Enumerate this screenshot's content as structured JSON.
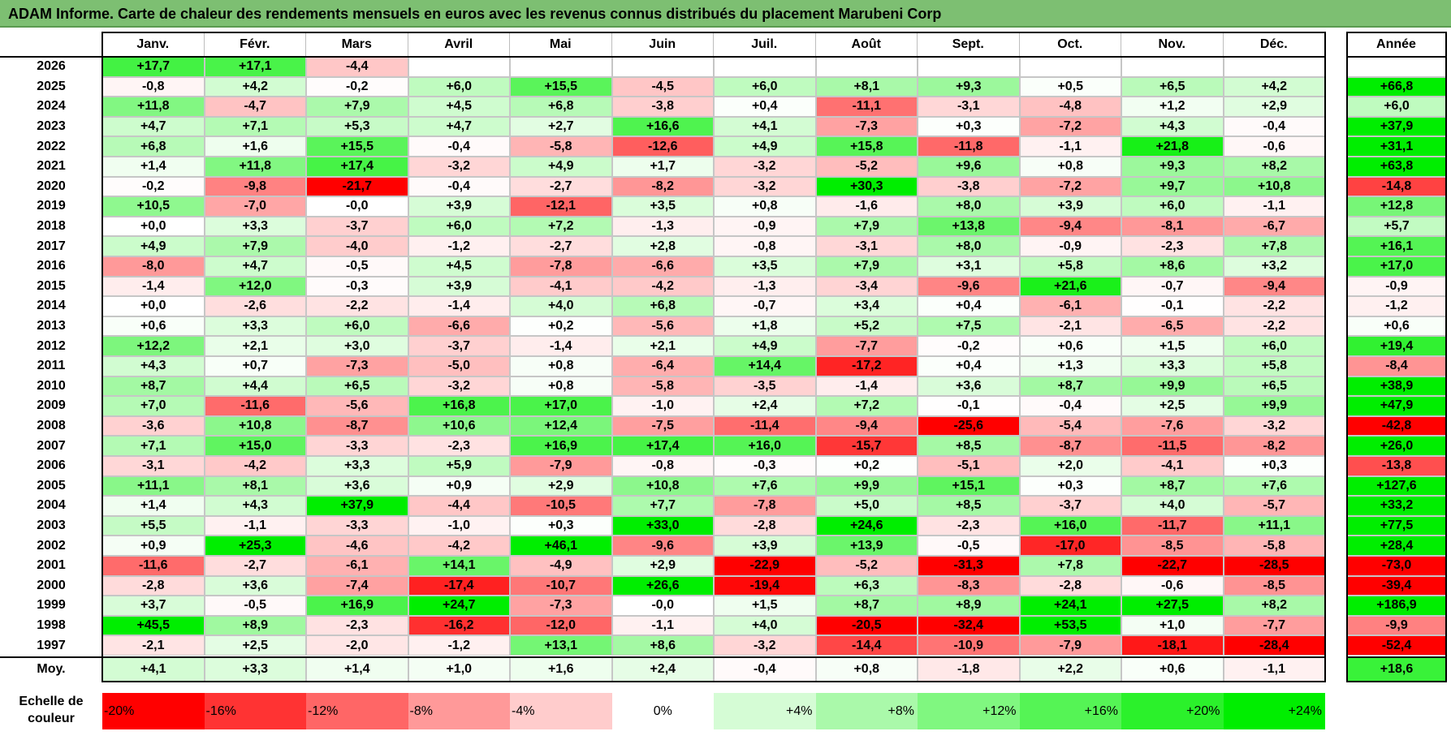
{
  "title": "ADAM Informe. Carte de chaleur des rendements mensuels en euros avec les revenus connus distribués du placement Marubeni Corp",
  "colors": {
    "title_bg": "#7dbf72",
    "positive_max": "#00ee00",
    "negative_max": "#ff0000",
    "neutral": "#ffffff"
  },
  "chart_data": {
    "type": "heatmap",
    "title": "ADAM Informe. Carte de chaleur des rendements mensuels en euros avec les revenus connus distribués du placement Marubeni Corp",
    "months": [
      "Janv.",
      "Févr.",
      "Mars",
      "Avril",
      "Mai",
      "Juin",
      "Juil.",
      "Août",
      "Sept.",
      "Oct.",
      "Nov.",
      "Déc."
    ],
    "annual_header": "Année",
    "color_scale": {
      "min": -20,
      "max": 24
    },
    "rows": [
      {
        "year": "2026",
        "values": [
          "+17,7",
          "+17,1",
          "-4,4",
          "",
          "",
          "",
          "",
          "",
          "",
          "",
          "",
          ""
        ],
        "annual": ""
      },
      {
        "year": "2025",
        "values": [
          "-0,8",
          "+4,2",
          "-0,2",
          "+6,0",
          "+15,5",
          "-4,5",
          "+6,0",
          "+8,1",
          "+9,3",
          "+0,5",
          "+6,5",
          "+4,2"
        ],
        "annual": "+66,8"
      },
      {
        "year": "2024",
        "values": [
          "+11,8",
          "-4,7",
          "+7,9",
          "+4,5",
          "+6,8",
          "-3,8",
          "+0,4",
          "-11,1",
          "-3,1",
          "-4,8",
          "+1,2",
          "+2,9"
        ],
        "annual": "+6,0"
      },
      {
        "year": "2023",
        "values": [
          "+4,7",
          "+7,1",
          "+5,3",
          "+4,7",
          "+2,7",
          "+16,6",
          "+4,1",
          "-7,3",
          "+0,3",
          "-7,2",
          "+4,3",
          "-0,4"
        ],
        "annual": "+37,9"
      },
      {
        "year": "2022",
        "values": [
          "+6,8",
          "+1,6",
          "+15,5",
          "-0,4",
          "-5,8",
          "-12,6",
          "+4,9",
          "+15,8",
          "-11,8",
          "-1,1",
          "+21,8",
          "-0,6"
        ],
        "annual": "+31,1"
      },
      {
        "year": "2021",
        "values": [
          "+1,4",
          "+11,8",
          "+17,4",
          "-3,2",
          "+4,9",
          "+1,7",
          "-3,2",
          "-5,2",
          "+9,6",
          "+0,8",
          "+9,3",
          "+8,2"
        ],
        "annual": "+63,8"
      },
      {
        "year": "2020",
        "values": [
          "-0,2",
          "-9,8",
          "-21,7",
          "-0,4",
          "-2,7",
          "-8,2",
          "-3,2",
          "+30,3",
          "-3,8",
          "-7,2",
          "+9,7",
          "+10,8"
        ],
        "annual": "-14,8"
      },
      {
        "year": "2019",
        "values": [
          "+10,5",
          "-7,0",
          "-0,0",
          "+3,9",
          "-12,1",
          "+3,5",
          "+0,8",
          "-1,6",
          "+8,0",
          "+3,9",
          "+6,0",
          "-1,1"
        ],
        "annual": "+12,8"
      },
      {
        "year": "2018",
        "values": [
          "+0,0",
          "+3,3",
          "-3,7",
          "+6,0",
          "+7,2",
          "-1,3",
          "-0,9",
          "+7,9",
          "+13,8",
          "-9,4",
          "-8,1",
          "-6,7"
        ],
        "annual": "+5,7"
      },
      {
        "year": "2017",
        "values": [
          "+4,9",
          "+7,9",
          "-4,0",
          "-1,2",
          "-2,7",
          "+2,8",
          "-0,8",
          "-3,1",
          "+8,0",
          "-0,9",
          "-2,3",
          "+7,8"
        ],
        "annual": "+16,1"
      },
      {
        "year": "2016",
        "values": [
          "-8,0",
          "+4,7",
          "-0,5",
          "+4,5",
          "-7,8",
          "-6,6",
          "+3,5",
          "+7,9",
          "+3,1",
          "+5,8",
          "+8,6",
          "+3,2"
        ],
        "annual": "+17,0"
      },
      {
        "year": "2015",
        "values": [
          "-1,4",
          "+12,0",
          "-0,3",
          "+3,9",
          "-4,1",
          "-4,2",
          "-1,3",
          "-3,4",
          "-9,6",
          "+21,6",
          "-0,7",
          "-9,4"
        ],
        "annual": "-0,9"
      },
      {
        "year": "2014",
        "values": [
          "+0,0",
          "-2,6",
          "-2,2",
          "-1,4",
          "+4,0",
          "+6,8",
          "-0,7",
          "+3,4",
          "+0,4",
          "-6,1",
          "-0,1",
          "-2,2"
        ],
        "annual": "-1,2"
      },
      {
        "year": "2013",
        "values": [
          "+0,6",
          "+3,3",
          "+6,0",
          "-6,6",
          "+0,2",
          "-5,6",
          "+1,8",
          "+5,2",
          "+7,5",
          "-2,1",
          "-6,5",
          "-2,2"
        ],
        "annual": "+0,6"
      },
      {
        "year": "2012",
        "values": [
          "+12,2",
          "+2,1",
          "+3,0",
          "-3,7",
          "-1,4",
          "+2,1",
          "+4,9",
          "-7,7",
          "-0,2",
          "+0,6",
          "+1,5",
          "+6,0"
        ],
        "annual": "+19,4"
      },
      {
        "year": "2011",
        "values": [
          "+4,3",
          "+0,7",
          "-7,3",
          "-5,0",
          "+0,8",
          "-6,4",
          "+14,4",
          "-17,2",
          "+0,4",
          "+1,3",
          "+3,3",
          "+5,8"
        ],
        "annual": "-8,4"
      },
      {
        "year": "2010",
        "values": [
          "+8,7",
          "+4,4",
          "+6,5",
          "-3,2",
          "+0,8",
          "-5,8",
          "-3,5",
          "-1,4",
          "+3,6",
          "+8,7",
          "+9,9",
          "+6,5"
        ],
        "annual": "+38,9"
      },
      {
        "year": "2009",
        "values": [
          "+7,0",
          "-11,6",
          "-5,6",
          "+16,8",
          "+17,0",
          "-1,0",
          "+2,4",
          "+7,2",
          "-0,1",
          "-0,4",
          "+2,5",
          "+9,9"
        ],
        "annual": "+47,9"
      },
      {
        "year": "2008",
        "values": [
          "-3,6",
          "+10,8",
          "-8,7",
          "+10,6",
          "+12,4",
          "-7,5",
          "-11,4",
          "-9,4",
          "-25,6",
          "-5,4",
          "-7,6",
          "-3,2"
        ],
        "annual": "-42,8"
      },
      {
        "year": "2007",
        "values": [
          "+7,1",
          "+15,0",
          "-3,3",
          "-2,3",
          "+16,9",
          "+17,4",
          "+16,0",
          "-15,7",
          "+8,5",
          "-8,7",
          "-11,5",
          "-8,2"
        ],
        "annual": "+26,0"
      },
      {
        "year": "2006",
        "values": [
          "-3,1",
          "-4,2",
          "+3,3",
          "+5,9",
          "-7,9",
          "-0,8",
          "-0,3",
          "+0,2",
          "-5,1",
          "+2,0",
          "-4,1",
          "+0,3"
        ],
        "annual": "-13,8"
      },
      {
        "year": "2005",
        "values": [
          "+11,1",
          "+8,1",
          "+3,6",
          "+0,9",
          "+2,9",
          "+10,8",
          "+7,6",
          "+9,9",
          "+15,1",
          "+0,3",
          "+8,7",
          "+7,6"
        ],
        "annual": "+127,6"
      },
      {
        "year": "2004",
        "values": [
          "+1,4",
          "+4,3",
          "+37,9",
          "-4,4",
          "-10,5",
          "+7,7",
          "-7,8",
          "+5,0",
          "+8,5",
          "-3,7",
          "+4,0",
          "-5,7"
        ],
        "annual": "+33,2"
      },
      {
        "year": "2003",
        "values": [
          "+5,5",
          "-1,1",
          "-3,3",
          "-1,0",
          "+0,3",
          "+33,0",
          "-2,8",
          "+24,6",
          "-2,3",
          "+16,0",
          "-11,7",
          "+11,1"
        ],
        "annual": "+77,5"
      },
      {
        "year": "2002",
        "values": [
          "+0,9",
          "+25,3",
          "-4,6",
          "-4,2",
          "+46,1",
          "-9,6",
          "+3,9",
          "+13,9",
          "-0,5",
          "-17,0",
          "-8,5",
          "-5,8"
        ],
        "annual": "+28,4"
      },
      {
        "year": "2001",
        "values": [
          "-11,6",
          "-2,7",
          "-6,1",
          "+14,1",
          "-4,9",
          "+2,9",
          "-22,9",
          "-5,2",
          "-31,3",
          "+7,8",
          "-22,7",
          "-28,5"
        ],
        "annual": "-73,0"
      },
      {
        "year": "2000",
        "values": [
          "-2,8",
          "+3,6",
          "-7,4",
          "-17,4",
          "-10,7",
          "+26,6",
          "-19,4",
          "+6,3",
          "-8,3",
          "-2,8",
          "-0,6",
          "-8,5"
        ],
        "annual": "-39,4"
      },
      {
        "year": "1999",
        "values": [
          "+3,7",
          "-0,5",
          "+16,9",
          "+24,7",
          "-7,3",
          "-0,0",
          "+1,5",
          "+8,7",
          "+8,9",
          "+24,1",
          "+27,5",
          "+8,2"
        ],
        "annual": "+186,9"
      },
      {
        "year": "1998",
        "values": [
          "+45,5",
          "+8,9",
          "-2,3",
          "-16,2",
          "-12,0",
          "-1,1",
          "+4,0",
          "-20,5",
          "-32,4",
          "+53,5",
          "+1,0",
          "-7,7"
        ],
        "annual": "-9,9"
      },
      {
        "year": "1997",
        "values": [
          "-2,1",
          "+2,5",
          "-2,0",
          "-1,2",
          "+13,1",
          "+8,6",
          "-3,2",
          "-14,4",
          "-10,9",
          "-7,9",
          "-18,1",
          "-28,4"
        ],
        "annual": "-52,4"
      }
    ],
    "average": {
      "label": "Moy.",
      "values": [
        "+4,1",
        "+3,3",
        "+1,4",
        "+1,0",
        "+1,6",
        "+2,4",
        "-0,4",
        "+0,8",
        "-1,8",
        "+2,2",
        "+0,6",
        "-1,1"
      ],
      "annual": "+18,6"
    },
    "legend": {
      "label_line1": "Echelle de",
      "label_line2": "couleur",
      "items": [
        {
          "label": "-20%",
          "value": -20
        },
        {
          "label": "-16%",
          "value": -16
        },
        {
          "label": "-12%",
          "value": -12
        },
        {
          "label": "-8%",
          "value": -8
        },
        {
          "label": "-4%",
          "value": -4
        },
        {
          "label": "0%",
          "value": 0
        },
        {
          "label": "+4%",
          "value": 4
        },
        {
          "label": "+8%",
          "value": 8
        },
        {
          "label": "+12%",
          "value": 12
        },
        {
          "label": "+16%",
          "value": 16
        },
        {
          "label": "+20%",
          "value": 20
        },
        {
          "label": "+24%",
          "value": 24
        }
      ]
    }
  }
}
